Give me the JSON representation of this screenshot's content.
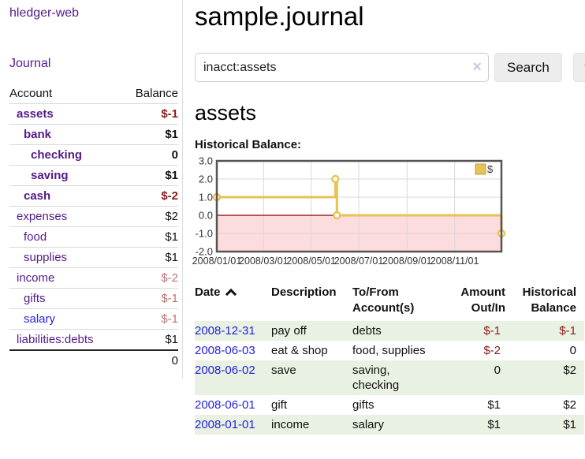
{
  "sidebar": {
    "app_title": "hledger-web",
    "journal_link": "Journal",
    "accounts_table": {
      "header": {
        "account": "Account",
        "balance": "Balance"
      },
      "rows": [
        {
          "name": "assets",
          "balance": "$-1",
          "level": 1,
          "bold": true,
          "balance_color": "negative",
          "link_color": "purple"
        },
        {
          "name": "bank",
          "balance": "$1",
          "level": 2,
          "bold": true,
          "balance_color": "normal",
          "link_color": "purple"
        },
        {
          "name": "checking",
          "balance": "0",
          "level": 3,
          "bold": true,
          "balance_color": "normal",
          "link_color": "purple"
        },
        {
          "name": "saving",
          "balance": "$1",
          "level": 3,
          "bold": true,
          "balance_color": "normal",
          "link_color": "purple"
        },
        {
          "name": "cash",
          "balance": "$-2",
          "level": 2,
          "bold": true,
          "balance_color": "negative",
          "link_color": "purple"
        },
        {
          "name": "expenses",
          "balance": "$2",
          "level": 1,
          "bold": false,
          "balance_color": "normal",
          "link_color": "purple"
        },
        {
          "name": "food",
          "balance": "$1",
          "level": 2,
          "bold": false,
          "balance_color": "normal",
          "link_color": "purple"
        },
        {
          "name": "supplies",
          "balance": "$1",
          "level": 2,
          "bold": false,
          "balance_color": "normal",
          "link_color": "purple"
        },
        {
          "name": "income",
          "balance": "$-2",
          "level": 1,
          "bold": false,
          "balance_color": "negative-muted",
          "link_color": "purple"
        },
        {
          "name": "gifts",
          "balance": "$-1",
          "level": 2,
          "bold": false,
          "balance_color": "negative-muted",
          "link_color": "purple"
        },
        {
          "name": "salary",
          "balance": "$-1",
          "level": 2,
          "bold": false,
          "balance_color": "negative-muted",
          "link_color": "blue"
        },
        {
          "name": "liabilities:debts",
          "balance": "$1",
          "level": 1,
          "bold": false,
          "balance_color": "normal",
          "link_color": "purple"
        }
      ],
      "total": "0"
    }
  },
  "main": {
    "title": "sample.journal",
    "search": {
      "value": "inacct:assets",
      "clear_icon": "×",
      "search_button": "Search",
      "help_button": "?"
    },
    "account_heading": "assets",
    "section_label": "Historical Balance:",
    "register_table": {
      "headers": {
        "date": "Date",
        "description": "Description",
        "accounts": "To/From Account(s)",
        "amount": "Amount Out/In",
        "balance": "Historical Balance"
      },
      "rows": [
        {
          "date": "2008-12-31",
          "description": "pay off",
          "accounts": "debts",
          "amount": "$-1",
          "balance": "$-1"
        },
        {
          "date": "2008-06-03",
          "description": "eat & shop",
          "accounts": "food, supplies",
          "amount": "$-2",
          "balance": "0"
        },
        {
          "date": "2008-06-02",
          "description": "save",
          "accounts": "saving,\nchecking",
          "amount": "0",
          "balance": "$2"
        },
        {
          "date": "2008-06-01",
          "description": "gift",
          "accounts": "gifts",
          "amount": "$1",
          "balance": "$2"
        },
        {
          "date": "2008-01-01",
          "description": "income",
          "accounts": "salary",
          "amount": "$1",
          "balance": "$1"
        }
      ]
    }
  },
  "chart_data": {
    "type": "line",
    "step": true,
    "title": "Historical Balance",
    "x_range": [
      "2008-01-01",
      "2008-12-31"
    ],
    "ylim": [
      -2,
      3
    ],
    "y_ticks": [
      3,
      2,
      1,
      0,
      -1,
      -2
    ],
    "x_ticks": [
      {
        "label": "2008/01/01",
        "date": "2008-01-01"
      },
      {
        "label": "2008/03/01",
        "date": "2008-03-01"
      },
      {
        "label": "2008/05/01",
        "date": "2008-05-01"
      },
      {
        "label": "2008/07/01",
        "date": "2008-07-01"
      },
      {
        "label": "2008/09/01",
        "date": "2008-09-01"
      },
      {
        "label": "2008/11/01",
        "date": "2008-11-01"
      }
    ],
    "series": [
      {
        "name": "$",
        "color": "#e7c254",
        "marker_fill": "#ffffff",
        "points": [
          [
            "2008-01-01",
            1
          ],
          [
            "2008-06-01",
            2
          ],
          [
            "2008-06-03",
            0
          ],
          [
            "2008-12-31",
            -1
          ]
        ]
      }
    ],
    "legend": {
      "label": "$",
      "position": "top-right"
    },
    "colors": {
      "negative_region": "#fcdcdc",
      "zero_line": "#8b0000",
      "grid": "#d9d9d9",
      "border": "#555555",
      "tick_text": "#333333",
      "legend_swatch_border": "#bfa23a"
    }
  }
}
